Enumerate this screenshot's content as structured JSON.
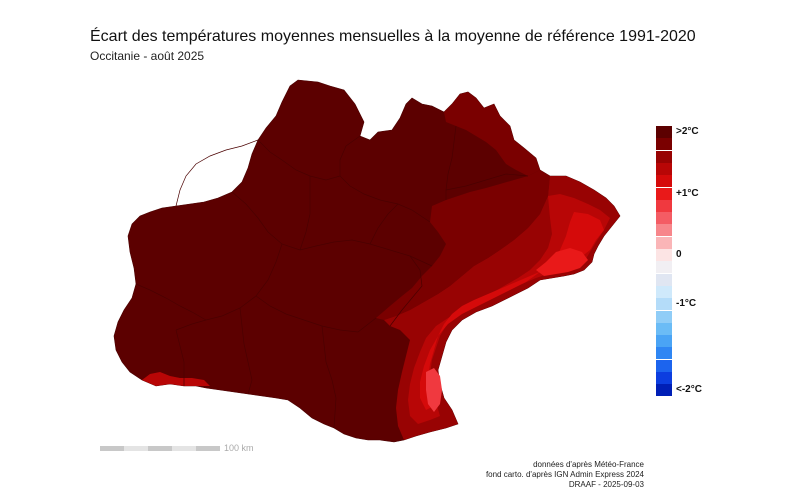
{
  "title": "Écart des températures moyennes mensuelles à la moyenne de référence 1991-2020",
  "subtitle": "Occitanie - août 2025",
  "legend": {
    "colors": [
      "#5c0000",
      "#7a0000",
      "#980303",
      "#b80606",
      "#d50a0a",
      "#e91919",
      "#f0393f",
      "#f45c64",
      "#f7868b",
      "#fab5b7",
      "#fce4e4",
      "#f1eff3",
      "#e0e6f2",
      "#cfe9fb",
      "#b4dcf9",
      "#90cdf7",
      "#6bbcf6",
      "#4aa4f5",
      "#2f86f3",
      "#1c64ee",
      "#0c3ee0",
      "#001fb6"
    ],
    "labels": [
      {
        "text": ">2°C",
        "index": 0
      },
      {
        "text": "+1°C",
        "index": 5
      },
      {
        "text": "0",
        "index": 10
      },
      {
        "text": "-1°C",
        "index": 14
      },
      {
        "text": "<-2°C",
        "index": 21
      }
    ]
  },
  "scale_bar": {
    "label": "100 km"
  },
  "credits": [
    "données d'après Météo-France",
    "fond carto. d'après IGN Admin Express 2024",
    "DRAAF - 2025-09-03"
  ],
  "map_colors": {
    "extreme": "#5c0000",
    "very_high": "#7a0000",
    "high": "#980303",
    "mid_high": "#b80606",
    "mid": "#d50a0a",
    "mid_low": "#e91919",
    "low": "#f0393f",
    "border": "#4a0000"
  }
}
